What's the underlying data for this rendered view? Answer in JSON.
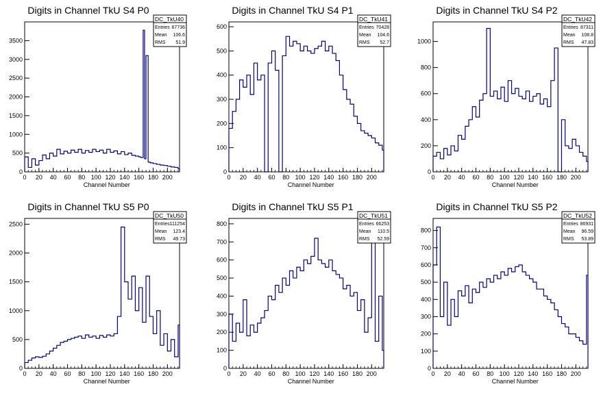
{
  "x_axis_label": "Channel Number",
  "chart_data": [
    {
      "type": "histogram",
      "title": "Digits in Channel TkU S4 P0",
      "xlabel": "Channel Number",
      "ylabel": "",
      "xlim": [
        0,
        217
      ],
      "ylim": [
        0,
        4000
      ],
      "x_ticks": [
        0,
        20,
        40,
        60,
        80,
        100,
        120,
        140,
        160,
        180,
        200
      ],
      "y_ticks": [
        0,
        500,
        1000,
        1500,
        2000,
        2500,
        3000,
        3500
      ],
      "stats": {
        "name": "DC_TkU40",
        "entries": "67736",
        "mean": "106.6",
        "rms": "51.9"
      },
      "series": [
        {
          "name": "DC_TkU40",
          "x": [
            0,
            5,
            10,
            15,
            20,
            25,
            30,
            35,
            40,
            45,
            50,
            55,
            60,
            65,
            70,
            75,
            80,
            85,
            90,
            95,
            100,
            105,
            110,
            115,
            120,
            125,
            130,
            135,
            140,
            145,
            150,
            155,
            160,
            163,
            166,
            168,
            170,
            173,
            176,
            180,
            185,
            190,
            195,
            200,
            205,
            210,
            215
          ],
          "values": [
            400,
            120,
            350,
            180,
            300,
            450,
            350,
            500,
            420,
            600,
            480,
            550,
            500,
            580,
            520,
            600,
            500,
            570,
            520,
            600,
            540,
            580,
            500,
            600,
            520,
            560,
            480,
            540,
            460,
            500,
            440,
            420,
            400,
            380,
            3780,
            350,
            3100,
            260,
            240,
            220,
            200,
            180,
            170,
            150,
            130,
            120,
            80
          ]
        }
      ]
    },
    {
      "type": "histogram",
      "title": "Digits in Channel TkU S4 P1",
      "xlabel": "Channel Number",
      "ylabel": "",
      "xlim": [
        0,
        217
      ],
      "ylim": [
        0,
        620
      ],
      "x_ticks": [
        0,
        20,
        40,
        60,
        80,
        100,
        120,
        140,
        160,
        180,
        200
      ],
      "y_ticks": [
        0,
        100,
        200,
        300,
        400,
        500,
        600
      ],
      "stats": {
        "name": "DC_TkU41",
        "entries": "70428",
        "mean": "104.6",
        "rms": "52.7"
      },
      "series": [
        {
          "name": "DC_TkU41",
          "x": [
            0,
            5,
            10,
            15,
            20,
            25,
            30,
            35,
            40,
            45,
            50,
            55,
            60,
            65,
            70,
            75,
            80,
            85,
            90,
            95,
            100,
            105,
            110,
            115,
            120,
            125,
            130,
            135,
            140,
            145,
            150,
            155,
            160,
            165,
            170,
            175,
            180,
            185,
            190,
            195,
            200,
            205,
            210,
            215
          ],
          "values": [
            180,
            250,
            300,
            380,
            350,
            400,
            320,
            450,
            380,
            400,
            0,
            450,
            500,
            420,
            0,
            480,
            560,
            520,
            540,
            530,
            500,
            520,
            500,
            490,
            510,
            520,
            540,
            500,
            520,
            490,
            460,
            400,
            340,
            300,
            280,
            230,
            200,
            170,
            160,
            150,
            140,
            120,
            110,
            90
          ]
        }
      ]
    },
    {
      "type": "histogram",
      "title": "Digits in Channel TkU S4 P2",
      "xlabel": "Channel Number",
      "ylabel": "",
      "xlim": [
        0,
        217
      ],
      "ylim": [
        0,
        1150
      ],
      "x_ticks": [
        0,
        20,
        40,
        60,
        80,
        100,
        120,
        140,
        160,
        180,
        200
      ],
      "y_ticks": [
        0,
        200,
        400,
        600,
        800,
        1000
      ],
      "stats": {
        "name": "DC_TkU42",
        "entries": "87311",
        "mean": "108.8",
        "rms": "47.83"
      },
      "series": [
        {
          "name": "DC_TkU42",
          "x": [
            0,
            5,
            10,
            15,
            20,
            25,
            30,
            35,
            40,
            45,
            50,
            55,
            60,
            65,
            70,
            75,
            80,
            85,
            90,
            95,
            100,
            105,
            110,
            115,
            120,
            125,
            130,
            135,
            140,
            145,
            150,
            155,
            160,
            165,
            170,
            175,
            180,
            185,
            190,
            195,
            200,
            205,
            210,
            215
          ],
          "values": [
            120,
            150,
            100,
            180,
            130,
            200,
            160,
            280,
            250,
            350,
            400,
            500,
            420,
            550,
            600,
            1100,
            580,
            620,
            560,
            650,
            540,
            700,
            600,
            640,
            580,
            560,
            620,
            540,
            580,
            600,
            520,
            560,
            500,
            700,
            950,
            0,
            400,
            200,
            180,
            250,
            200,
            150,
            120,
            80
          ]
        }
      ]
    },
    {
      "type": "histogram",
      "title": "Digits in Channel TkU S5 P0",
      "xlabel": "Channel Number",
      "ylabel": "",
      "xlim": [
        0,
        217
      ],
      "ylim": [
        0,
        2600
      ],
      "x_ticks": [
        0,
        20,
        40,
        60,
        80,
        100,
        120,
        140,
        160,
        180,
        200
      ],
      "y_ticks": [
        0,
        500,
        1000,
        1500,
        2000,
        2500
      ],
      "stats": {
        "name": "DC_TkU50",
        "entries": "111254",
        "mean": "123.4",
        "rms": "49.73"
      },
      "series": [
        {
          "name": "DC_TkU50",
          "x": [
            0,
            5,
            10,
            15,
            20,
            25,
            30,
            35,
            40,
            45,
            50,
            55,
            60,
            65,
            70,
            75,
            80,
            85,
            90,
            95,
            100,
            105,
            110,
            115,
            120,
            125,
            130,
            135,
            140,
            145,
            150,
            155,
            160,
            165,
            170,
            175,
            180,
            185,
            190,
            195,
            200,
            205,
            210,
            215
          ],
          "values": [
            100,
            140,
            180,
            200,
            190,
            210,
            250,
            300,
            350,
            400,
            450,
            470,
            500,
            520,
            540,
            560,
            520,
            580,
            540,
            560,
            520,
            570,
            540,
            580,
            560,
            600,
            900,
            2450,
            1500,
            1200,
            1600,
            1000,
            1400,
            800,
            1600,
            900,
            600,
            1000,
            400,
            600,
            300,
            500,
            200,
            750
          ]
        }
      ]
    },
    {
      "type": "histogram",
      "title": "Digits in Channel TkU S5 P1",
      "xlabel": "Channel Number",
      "ylabel": "",
      "xlim": [
        0,
        217
      ],
      "ylim": [
        0,
        830
      ],
      "x_ticks": [
        0,
        20,
        40,
        60,
        80,
        100,
        120,
        140,
        160,
        180,
        200
      ],
      "y_ticks": [
        0,
        100,
        200,
        300,
        400,
        500,
        600,
        700,
        800
      ],
      "stats": {
        "name": "DC_TkU51",
        "entries": "66253",
        "mean": "110.5",
        "rms": "52.59"
      },
      "series": [
        {
          "name": "DC_TkU51",
          "x": [
            0,
            5,
            10,
            15,
            20,
            25,
            30,
            35,
            40,
            45,
            50,
            55,
            60,
            65,
            70,
            75,
            80,
            85,
            90,
            95,
            100,
            105,
            110,
            115,
            120,
            125,
            130,
            135,
            140,
            145,
            150,
            155,
            160,
            165,
            170,
            175,
            180,
            185,
            190,
            195,
            200,
            205,
            210,
            215
          ],
          "values": [
            300,
            150,
            250,
            200,
            380,
            180,
            240,
            200,
            250,
            280,
            320,
            400,
            380,
            460,
            420,
            500,
            460,
            540,
            500,
            560,
            540,
            600,
            580,
            620,
            720,
            600,
            580,
            560,
            600,
            540,
            520,
            500,
            440,
            460,
            400,
            420,
            320,
            380,
            200,
            280,
            720,
            150,
            400,
            100
          ]
        }
      ]
    },
    {
      "type": "histogram",
      "title": "Digits in Channel TkU S5 P2",
      "xlabel": "Channel Number",
      "ylabel": "",
      "xlim": [
        0,
        217
      ],
      "ylim": [
        0,
        870
      ],
      "x_ticks": [
        0,
        20,
        40,
        60,
        80,
        100,
        120,
        140,
        160,
        180,
        200
      ],
      "y_ticks": [
        0,
        100,
        200,
        300,
        400,
        500,
        600,
        700,
        800
      ],
      "stats": {
        "name": "DC_TkU52",
        "entries": "86931",
        "mean": "96.59",
        "rms": "53.89"
      },
      "series": [
        {
          "name": "DC_TkU52",
          "x": [
            0,
            5,
            10,
            15,
            20,
            25,
            30,
            35,
            40,
            45,
            50,
            55,
            60,
            65,
            70,
            75,
            80,
            85,
            90,
            95,
            100,
            105,
            110,
            115,
            120,
            125,
            130,
            135,
            140,
            145,
            150,
            155,
            160,
            165,
            170,
            175,
            180,
            185,
            190,
            195,
            200,
            205,
            210,
            215
          ],
          "values": [
            600,
            820,
            300,
            500,
            250,
            400,
            300,
            450,
            420,
            480,
            380,
            460,
            440,
            500,
            470,
            520,
            500,
            540,
            520,
            560,
            540,
            580,
            560,
            590,
            600,
            560,
            540,
            520,
            500,
            460,
            460,
            420,
            400,
            380,
            340,
            300,
            260,
            240,
            200,
            200,
            180,
            160,
            140,
            540
          ]
        }
      ]
    }
  ]
}
